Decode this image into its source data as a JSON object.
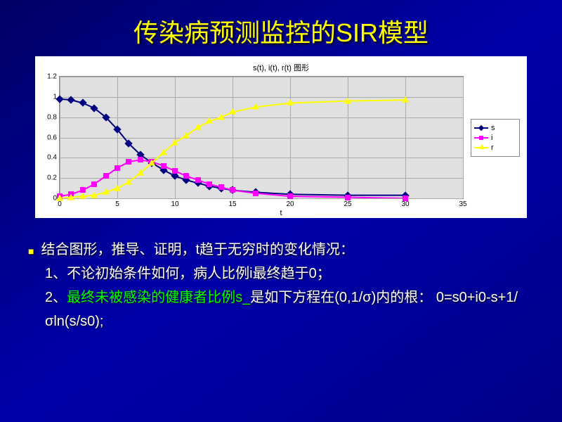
{
  "title": "传染病预测监控的SIR模型",
  "chart": {
    "type": "line",
    "inner_title": "s(t), i(t), r(t) 图形",
    "xlabel": "t",
    "xlim": [
      0,
      35
    ],
    "ylim": [
      0,
      1.2
    ],
    "xticks": [
      0,
      5,
      10,
      15,
      20,
      25,
      30,
      35
    ],
    "yticks": [
      0,
      0.2,
      0.4,
      0.6,
      0.8,
      1,
      1.2
    ],
    "grid_color": "#aaaaaa",
    "plot_bg": "#e0e0e0",
    "outer_bg": "#ffffff",
    "series": [
      {
        "name": "s",
        "color": "#000080",
        "marker": "diamond",
        "x": [
          0,
          1,
          2,
          3,
          4,
          5,
          6,
          7,
          8,
          9,
          10,
          11,
          12,
          13,
          14,
          15,
          17,
          20,
          25,
          30
        ],
        "y": [
          0.98,
          0.97,
          0.94,
          0.89,
          0.8,
          0.68,
          0.54,
          0.43,
          0.35,
          0.28,
          0.22,
          0.18,
          0.15,
          0.12,
          0.1,
          0.08,
          0.06,
          0.04,
          0.03,
          0.03
        ]
      },
      {
        "name": "i",
        "color": "#ff00ff",
        "marker": "square",
        "x": [
          0,
          1,
          2,
          3,
          4,
          5,
          6,
          7,
          8,
          9,
          10,
          11,
          12,
          13,
          14,
          15,
          17,
          20,
          25,
          30
        ],
        "y": [
          0.02,
          0.04,
          0.08,
          0.14,
          0.22,
          0.3,
          0.36,
          0.38,
          0.36,
          0.32,
          0.27,
          0.22,
          0.18,
          0.14,
          0.11,
          0.08,
          0.05,
          0.02,
          0.01,
          0.0
        ]
      },
      {
        "name": "r",
        "color": "#ffff00",
        "marker": "triangle",
        "x": [
          0,
          1,
          2,
          3,
          4,
          5,
          6,
          7,
          8,
          9,
          10,
          11,
          12,
          13,
          14,
          15,
          17,
          20,
          25,
          30
        ],
        "y": [
          0.0,
          0.01,
          0.02,
          0.03,
          0.06,
          0.1,
          0.16,
          0.25,
          0.35,
          0.45,
          0.55,
          0.62,
          0.7,
          0.76,
          0.8,
          0.85,
          0.9,
          0.94,
          0.96,
          0.97
        ]
      }
    ],
    "legend_labels": [
      "s",
      "i",
      "r"
    ]
  },
  "bullets": {
    "lead": "结合图形，推导、证明，t趋于无穷时的变化情况：",
    "item1": "1、不论初始条件如何，病人比例i最终趋于0；",
    "item2_prefix": "2、",
    "item2_green": "最终未被感染的健康者比例s_",
    "item2_suffix": "是如下方程在(0,1/σ)内的根：  0=s0+i0-s+1/σln(s/s0);"
  }
}
